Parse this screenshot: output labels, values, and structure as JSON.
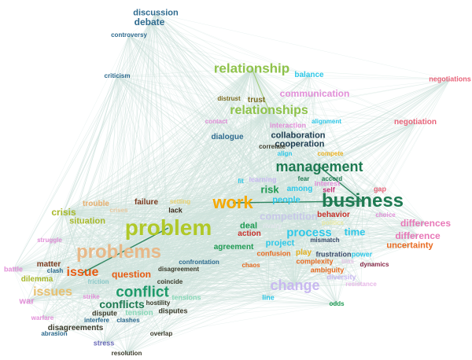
{
  "title": "Word co-occurrence network",
  "colors": {
    "edge": "#cfe3dd",
    "strong_edge": "#1e7a52"
  },
  "words": [
    {
      "text": "discussion",
      "color": "#2d6a8e",
      "weight": 11
    },
    {
      "text": "debate",
      "color": "#2d6a8e",
      "weight": 12
    },
    {
      "text": "controversy",
      "color": "#2d6a8e",
      "weight": 8
    },
    {
      "text": "criticism",
      "color": "#2d6a8e",
      "weight": 8
    },
    {
      "text": "negotiations",
      "color": "#e8647a",
      "weight": 9
    },
    {
      "text": "relationship",
      "color": "#8ec24a",
      "weight": 17
    },
    {
      "text": "balance",
      "color": "#2ec8e8",
      "weight": 10
    },
    {
      "text": "communication",
      "color": "#e28fd8",
      "weight": 12
    },
    {
      "text": "distrust",
      "color": "#7a6a1e",
      "weight": 8
    },
    {
      "text": "trust",
      "color": "#7a6a1e",
      "weight": 10
    },
    {
      "text": "relationships",
      "color": "#8ec24a",
      "weight": 16
    },
    {
      "text": "alignment",
      "color": "#2ec8e8",
      "weight": 8
    },
    {
      "text": "contact",
      "color": "#e28fd8",
      "weight": 8
    },
    {
      "text": "interaction",
      "color": "#e28fd8",
      "weight": 9
    },
    {
      "text": "negotiation",
      "color": "#e8647a",
      "weight": 10
    },
    {
      "text": "collaboration",
      "color": "#1a3a4e",
      "weight": 11
    },
    {
      "text": "dialogue",
      "color": "#2d6a8e",
      "weight": 10
    },
    {
      "text": "cooperation",
      "color": "#1a3a4e",
      "weight": 11
    },
    {
      "text": "correlate",
      "color": "#3a3a2a",
      "weight": 8
    },
    {
      "text": "align",
      "color": "#2ec8e8",
      "weight": 8
    },
    {
      "text": "compete",
      "color": "#e8b020",
      "weight": 8
    },
    {
      "text": "management",
      "color": "#1e7a52",
      "weight": 18
    },
    {
      "text": "fear",
      "color": "#1e7a52",
      "weight": 8
    },
    {
      "text": "accord",
      "color": "#1e7a52",
      "weight": 8
    },
    {
      "text": "fit",
      "color": "#2ec8e8",
      "weight": 8
    },
    {
      "text": "learning",
      "color": "#c8b8f0",
      "weight": 9
    },
    {
      "text": "interest",
      "color": "#e28fd8",
      "weight": 9
    },
    {
      "text": "risk",
      "color": "#1e9a52",
      "weight": 13
    },
    {
      "text": "among",
      "color": "#2ec8e8",
      "weight": 10
    },
    {
      "text": "self",
      "color": "#c8307a",
      "weight": 9
    },
    {
      "text": "gap",
      "color": "#e8647a",
      "weight": 9
    },
    {
      "text": "work",
      "color": "#f5a800",
      "weight": 22
    },
    {
      "text": "business",
      "color": "#1e7a52",
      "weight": 24
    },
    {
      "text": "people",
      "color": "#2ec8e8",
      "weight": 11
    },
    {
      "text": "trouble",
      "color": "#e8b070",
      "weight": 10
    },
    {
      "text": "setting",
      "color": "#e8d070",
      "weight": 8
    },
    {
      "text": "failure",
      "color": "#7a3a1e",
      "weight": 10
    },
    {
      "text": "crises",
      "color": "#e8c8a0",
      "weight": 8
    },
    {
      "text": "lack",
      "color": "#3a2a1a",
      "weight": 9
    },
    {
      "text": "crisis",
      "color": "#a8b82a",
      "weight": 12
    },
    {
      "text": "situation",
      "color": "#a8b82a",
      "weight": 11
    },
    {
      "text": "competition",
      "color": "#c8c8e8",
      "weight": 13
    },
    {
      "text": "behavior",
      "color": "#c8302a",
      "weight": 10
    },
    {
      "text": "choice",
      "color": "#e28fd8",
      "weight": 8
    },
    {
      "text": "differences",
      "color": "#e878b8",
      "weight": 12
    },
    {
      "text": "problem",
      "color": "#b0c828",
      "weight": 28
    },
    {
      "text": "rivalry",
      "color": "#e8e8f0",
      "weight": 8
    },
    {
      "text": "politics",
      "color": "#e8e8a0",
      "weight": 8
    },
    {
      "text": "deal",
      "color": "#1e9a52",
      "weight": 11
    },
    {
      "text": "action",
      "color": "#c8302a",
      "weight": 10
    },
    {
      "text": "process",
      "color": "#2ec8e8",
      "weight": 15
    },
    {
      "text": "time",
      "color": "#2ec8e8",
      "weight": 13
    },
    {
      "text": "difference",
      "color": "#e878b8",
      "weight": 12
    },
    {
      "text": "struggle",
      "color": "#e28fd8",
      "weight": 8
    },
    {
      "text": "project",
      "color": "#2ec8e8",
      "weight": 11
    },
    {
      "text": "mismatch",
      "color": "#3a4a6a",
      "weight": 8
    },
    {
      "text": "problems",
      "color": "#e8b888",
      "weight": 24
    },
    {
      "text": "agreement",
      "color": "#1e9a52",
      "weight": 10
    },
    {
      "text": "uncertainty",
      "color": "#e86a20",
      "weight": 11
    },
    {
      "text": "confusion",
      "color": "#e86a20",
      "weight": 9
    },
    {
      "text": "play",
      "color": "#e8b020",
      "weight": 10
    },
    {
      "text": "frustration",
      "color": "#3a4a6a",
      "weight": 9
    },
    {
      "text": "power",
      "color": "#2ec8e8",
      "weight": 9
    },
    {
      "text": "confrontation",
      "color": "#2d6a8e",
      "weight": 8
    },
    {
      "text": "matter",
      "color": "#7a3a1e",
      "weight": 10
    },
    {
      "text": "complexity",
      "color": "#e86a20",
      "weight": 9
    },
    {
      "text": "bias",
      "color": "#e8c8e8",
      "weight": 8
    },
    {
      "text": "chaos",
      "color": "#e86a20",
      "weight": 8
    },
    {
      "text": "dynamics",
      "color": "#8a2a4a",
      "weight": 8
    },
    {
      "text": "battle",
      "color": "#e28fd8",
      "weight": 9
    },
    {
      "text": "clash",
      "color": "#2d6a8e",
      "weight": 8
    },
    {
      "text": "issue",
      "color": "#e85a10",
      "weight": 16
    },
    {
      "text": "question",
      "color": "#e85a10",
      "weight": 12
    },
    {
      "text": "disagreement",
      "color": "#3a3a2a",
      "weight": 8
    },
    {
      "text": "ambiguity",
      "color": "#e86a20",
      "weight": 9
    },
    {
      "text": "diversity",
      "color": "#c8b8f0",
      "weight": 9
    },
    {
      "text": "dilemma",
      "color": "#a8b82a",
      "weight": 10
    },
    {
      "text": "friction",
      "color": "#8ac8c8",
      "weight": 8
    },
    {
      "text": "coincide",
      "color": "#3a3a2a",
      "weight": 8
    },
    {
      "text": "change",
      "color": "#c8b8f0",
      "weight": 18
    },
    {
      "text": "resistance",
      "color": "#e8b8e8",
      "weight": 8
    },
    {
      "text": "issues",
      "color": "#e8c070",
      "weight": 16
    },
    {
      "text": "conflict",
      "color": "#1e9a6a",
      "weight": 19
    },
    {
      "text": "war",
      "color": "#e28fd8",
      "weight": 11
    },
    {
      "text": "strike",
      "color": "#e28fd8",
      "weight": 8
    },
    {
      "text": "tensions",
      "color": "#8ad8b8",
      "weight": 9
    },
    {
      "text": "conflicts",
      "color": "#1e7a52",
      "weight": 14
    },
    {
      "text": "hostility",
      "color": "#3a3a2a",
      "weight": 8
    },
    {
      "text": "line",
      "color": "#2ec8e8",
      "weight": 9
    },
    {
      "text": "odds",
      "color": "#1e9a52",
      "weight": 8
    },
    {
      "text": "tension",
      "color": "#8ad8b8",
      "weight": 10
    },
    {
      "text": "disputes",
      "color": "#3a3a2a",
      "weight": 9
    },
    {
      "text": "dispute",
      "color": "#3a3a2a",
      "weight": 9
    },
    {
      "text": "warfare",
      "color": "#e28fd8",
      "weight": 8
    },
    {
      "text": "interfere",
      "color": "#2d6a8e",
      "weight": 8
    },
    {
      "text": "clashes",
      "color": "#2d6a8e",
      "weight": 8
    },
    {
      "text": "disagreements",
      "color": "#3a3a2a",
      "weight": 10
    },
    {
      "text": "abrasion",
      "color": "#2d6a8e",
      "weight": 8
    },
    {
      "text": "overlap",
      "color": "#3a3a2a",
      "weight": 8
    },
    {
      "text": "stress",
      "color": "#6a6ab8",
      "weight": 9
    },
    {
      "text": "resolution",
      "color": "#3a3a2a",
      "weight": 8
    }
  ]
}
